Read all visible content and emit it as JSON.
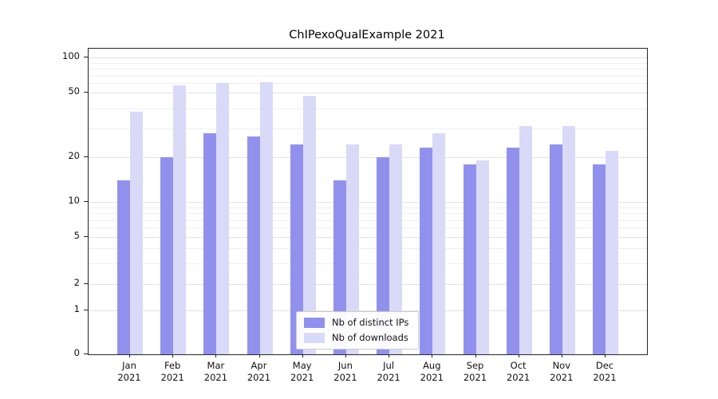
{
  "chart_data": {
    "type": "bar",
    "title": "ChIPexoQualExample 2021",
    "xlabel": "",
    "ylabel": "",
    "categories": [
      {
        "month": "Jan",
        "year": "2021"
      },
      {
        "month": "Feb",
        "year": "2021"
      },
      {
        "month": "Mar",
        "year": "2021"
      },
      {
        "month": "Apr",
        "year": "2021"
      },
      {
        "month": "May",
        "year": "2021"
      },
      {
        "month": "Jun",
        "year": "2021"
      },
      {
        "month": "Jul",
        "year": "2021"
      },
      {
        "month": "Aug",
        "year": "2021"
      },
      {
        "month": "Sep",
        "year": "2021"
      },
      {
        "month": "Oct",
        "year": "2021"
      },
      {
        "month": "Nov",
        "year": "2021"
      },
      {
        "month": "Dec",
        "year": "2021"
      }
    ],
    "series": [
      {
        "name": "Nb of distinct IPs",
        "color": "#9191ed",
        "values": [
          14,
          20,
          28,
          27,
          24,
          14,
          20,
          23,
          18,
          23,
          24,
          18
        ]
      },
      {
        "name": "Nb of downloads",
        "color": "#d9d9f8",
        "values": [
          38,
          58,
          60,
          61,
          48,
          24,
          24,
          28,
          19,
          31,
          31,
          22
        ]
      }
    ],
    "y_ticks": [
      0,
      1,
      2,
      5,
      10,
      20,
      50,
      100
    ],
    "minor_gridlines": [
      3,
      4,
      6,
      7,
      8,
      9,
      30,
      40,
      60,
      70,
      80,
      90
    ],
    "scale_anchors": [
      [
        0,
        0
      ],
      [
        1,
        0.1436
      ],
      [
        2,
        0.2298
      ],
      [
        5,
        0.3838
      ],
      [
        10,
        0.4987
      ],
      [
        20,
        0.6449
      ],
      [
        50,
        0.8564
      ],
      [
        100,
        0.9713
      ]
    ],
    "grid": "horizontal-only",
    "legend_position": "lower-center-inside"
  }
}
